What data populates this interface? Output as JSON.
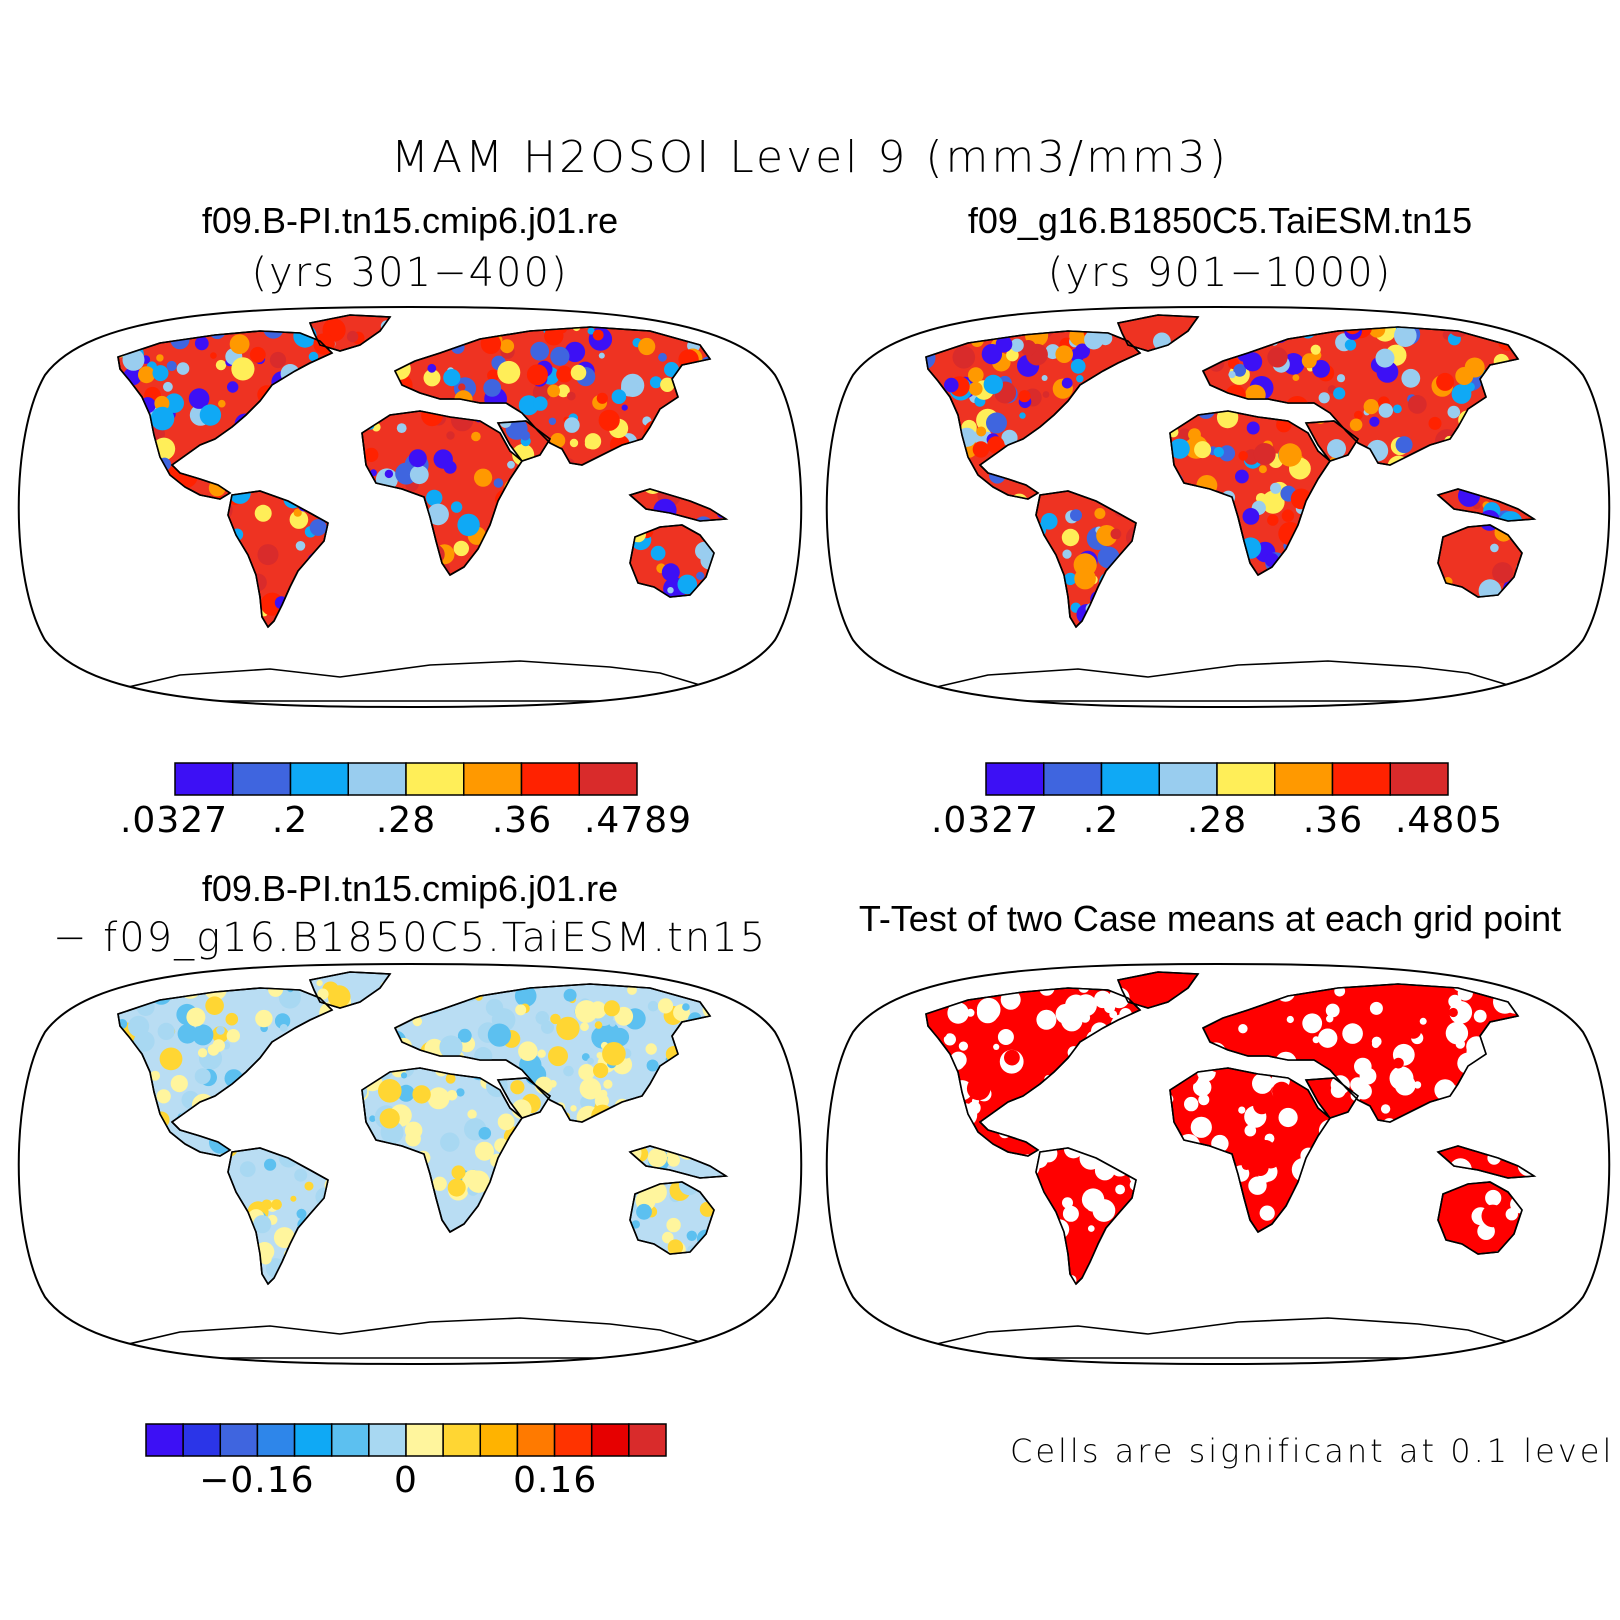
{
  "title": "MAM H2OSOI Level 9 (mm3/mm3)",
  "panels": {
    "case1": {
      "title": "f09.B-PI.tn15.cmip6.j01.re",
      "years": "(yrs 301−400)"
    },
    "case2": {
      "title": "f09_g16.B1850C5.TaiESM.tn15",
      "years": "(yrs 901−1000)"
    },
    "diff": {
      "line1": "f09.B-PI.tn15.cmip6.j01.re",
      "line2": "− f09_g16.B1850C5.TaiESM.tn15"
    },
    "ttest": {
      "title": "T-Test of two Case means at each grid point",
      "note": "Cells are significant at 0.1 level"
    }
  },
  "colorbars": {
    "case1": {
      "colors": [
        "#3d10f5",
        "#3f65df",
        "#0fa9f5",
        "#99cdef",
        "#ffee58",
        "#ff9900",
        "#ff2200",
        "#d92b2b"
      ],
      "labels": [
        ".0327",
        ".2",
        ".28",
        ".36",
        ".4789"
      ]
    },
    "case2": {
      "colors": [
        "#3d10f5",
        "#3f65df",
        "#0fa9f5",
        "#99cdef",
        "#ffee58",
        "#ff9900",
        "#ff2200",
        "#d92b2b"
      ],
      "labels": [
        ".0327",
        ".2",
        ".28",
        ".36",
        ".4805"
      ]
    },
    "diff": {
      "colors": [
        "#3d10f5",
        "#2b35e8",
        "#3f65df",
        "#2e86ea",
        "#0fa9f5",
        "#5cc0f0",
        "#a8d8f2",
        "#fff59d",
        "#ffd633",
        "#ffb300",
        "#ff7a00",
        "#ff3300",
        "#e60000",
        "#d92b2b"
      ],
      "labels": [
        "−0.16",
        "0",
        "0.16"
      ]
    }
  },
  "map_fills": {
    "case1": "#ee3322",
    "case2": "#ee3322",
    "diff": "#b9ddf3",
    "ttest": "#ff0000"
  }
}
